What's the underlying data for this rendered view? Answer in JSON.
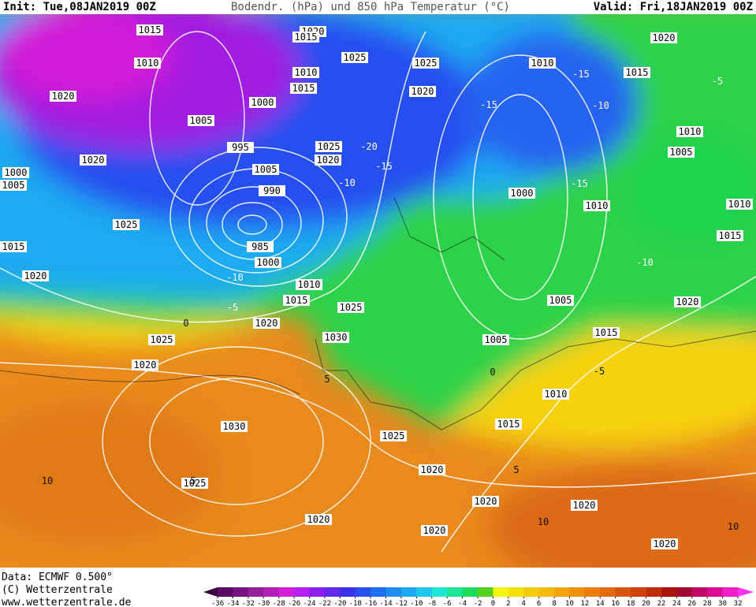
{
  "header": {
    "init": "Init: Tue,08JAN2019 00Z",
    "title": "Bodendr. (hPa) und 850 hPa Temperatur (°C)",
    "valid": "Valid: Fri,18JAN2019 00Z"
  },
  "footer": {
    "data": "Data: ECMWF   0.500°",
    "copyright": "(C) Wetterzentrale",
    "url": "www.wetterzentrale.de"
  },
  "isobar_labels": [
    1015,
    1010,
    1020,
    1000,
    1005,
    995,
    1005,
    990,
    985,
    1000,
    1020,
    1025,
    1015,
    1020,
    1000,
    1005,
    1020,
    1015,
    1025,
    1010,
    1015,
    1025,
    1020,
    1025,
    1020,
    1010,
    1020,
    1015,
    1010,
    1005,
    1000,
    1010,
    1010,
    1015,
    1020,
    1005,
    1005,
    1015,
    1010,
    1015,
    1020,
    1025,
    1030,
    1025,
    1020,
    1030,
    1025,
    1010,
    1015,
    1020,
    1020,
    1025,
    1020,
    1020,
    1020,
    1020
  ],
  "temperature_labels": [
    -15,
    -10,
    -5,
    -15,
    -15,
    -10,
    -20,
    -15,
    -10,
    -5,
    -10,
    0,
    5,
    5,
    10,
    0,
    -5,
    5,
    10,
    10
  ],
  "colorbar": {
    "ticks": [
      -36,
      -34,
      -32,
      -30,
      -28,
      -26,
      -24,
      -22,
      -20,
      -18,
      -16,
      -14,
      -12,
      -10,
      -8,
      -6,
      -4,
      -2,
      0,
      2,
      4,
      6,
      8,
      10,
      12,
      14,
      16,
      18,
      20,
      22,
      24,
      26,
      28,
      30,
      32
    ],
    "colors": [
      "#3c003c",
      "#5a0a64",
      "#78147f",
      "#961e9b",
      "#b41eb9",
      "#d21ed7",
      "#b41ef0",
      "#8c1ef0",
      "#6428f0",
      "#3c32f0",
      "#2850f0",
      "#1e6ef0",
      "#1e8cf0",
      "#1eaaf0",
      "#1ec8f0",
      "#1ee6d2",
      "#1ee696",
      "#1edc5a",
      "#50d21e",
      "#f5f514",
      "#f5e10a",
      "#f5cd0a",
      "#f5b90a",
      "#f5a50a",
      "#f0910a",
      "#eb7d0a",
      "#e1690a",
      "#d7550a",
      "#cd410a",
      "#be2d0a",
      "#aa140a",
      "#a00a32",
      "#be0a64",
      "#dc0a96",
      "#f01ec8",
      "#ff32f0"
    ]
  }
}
